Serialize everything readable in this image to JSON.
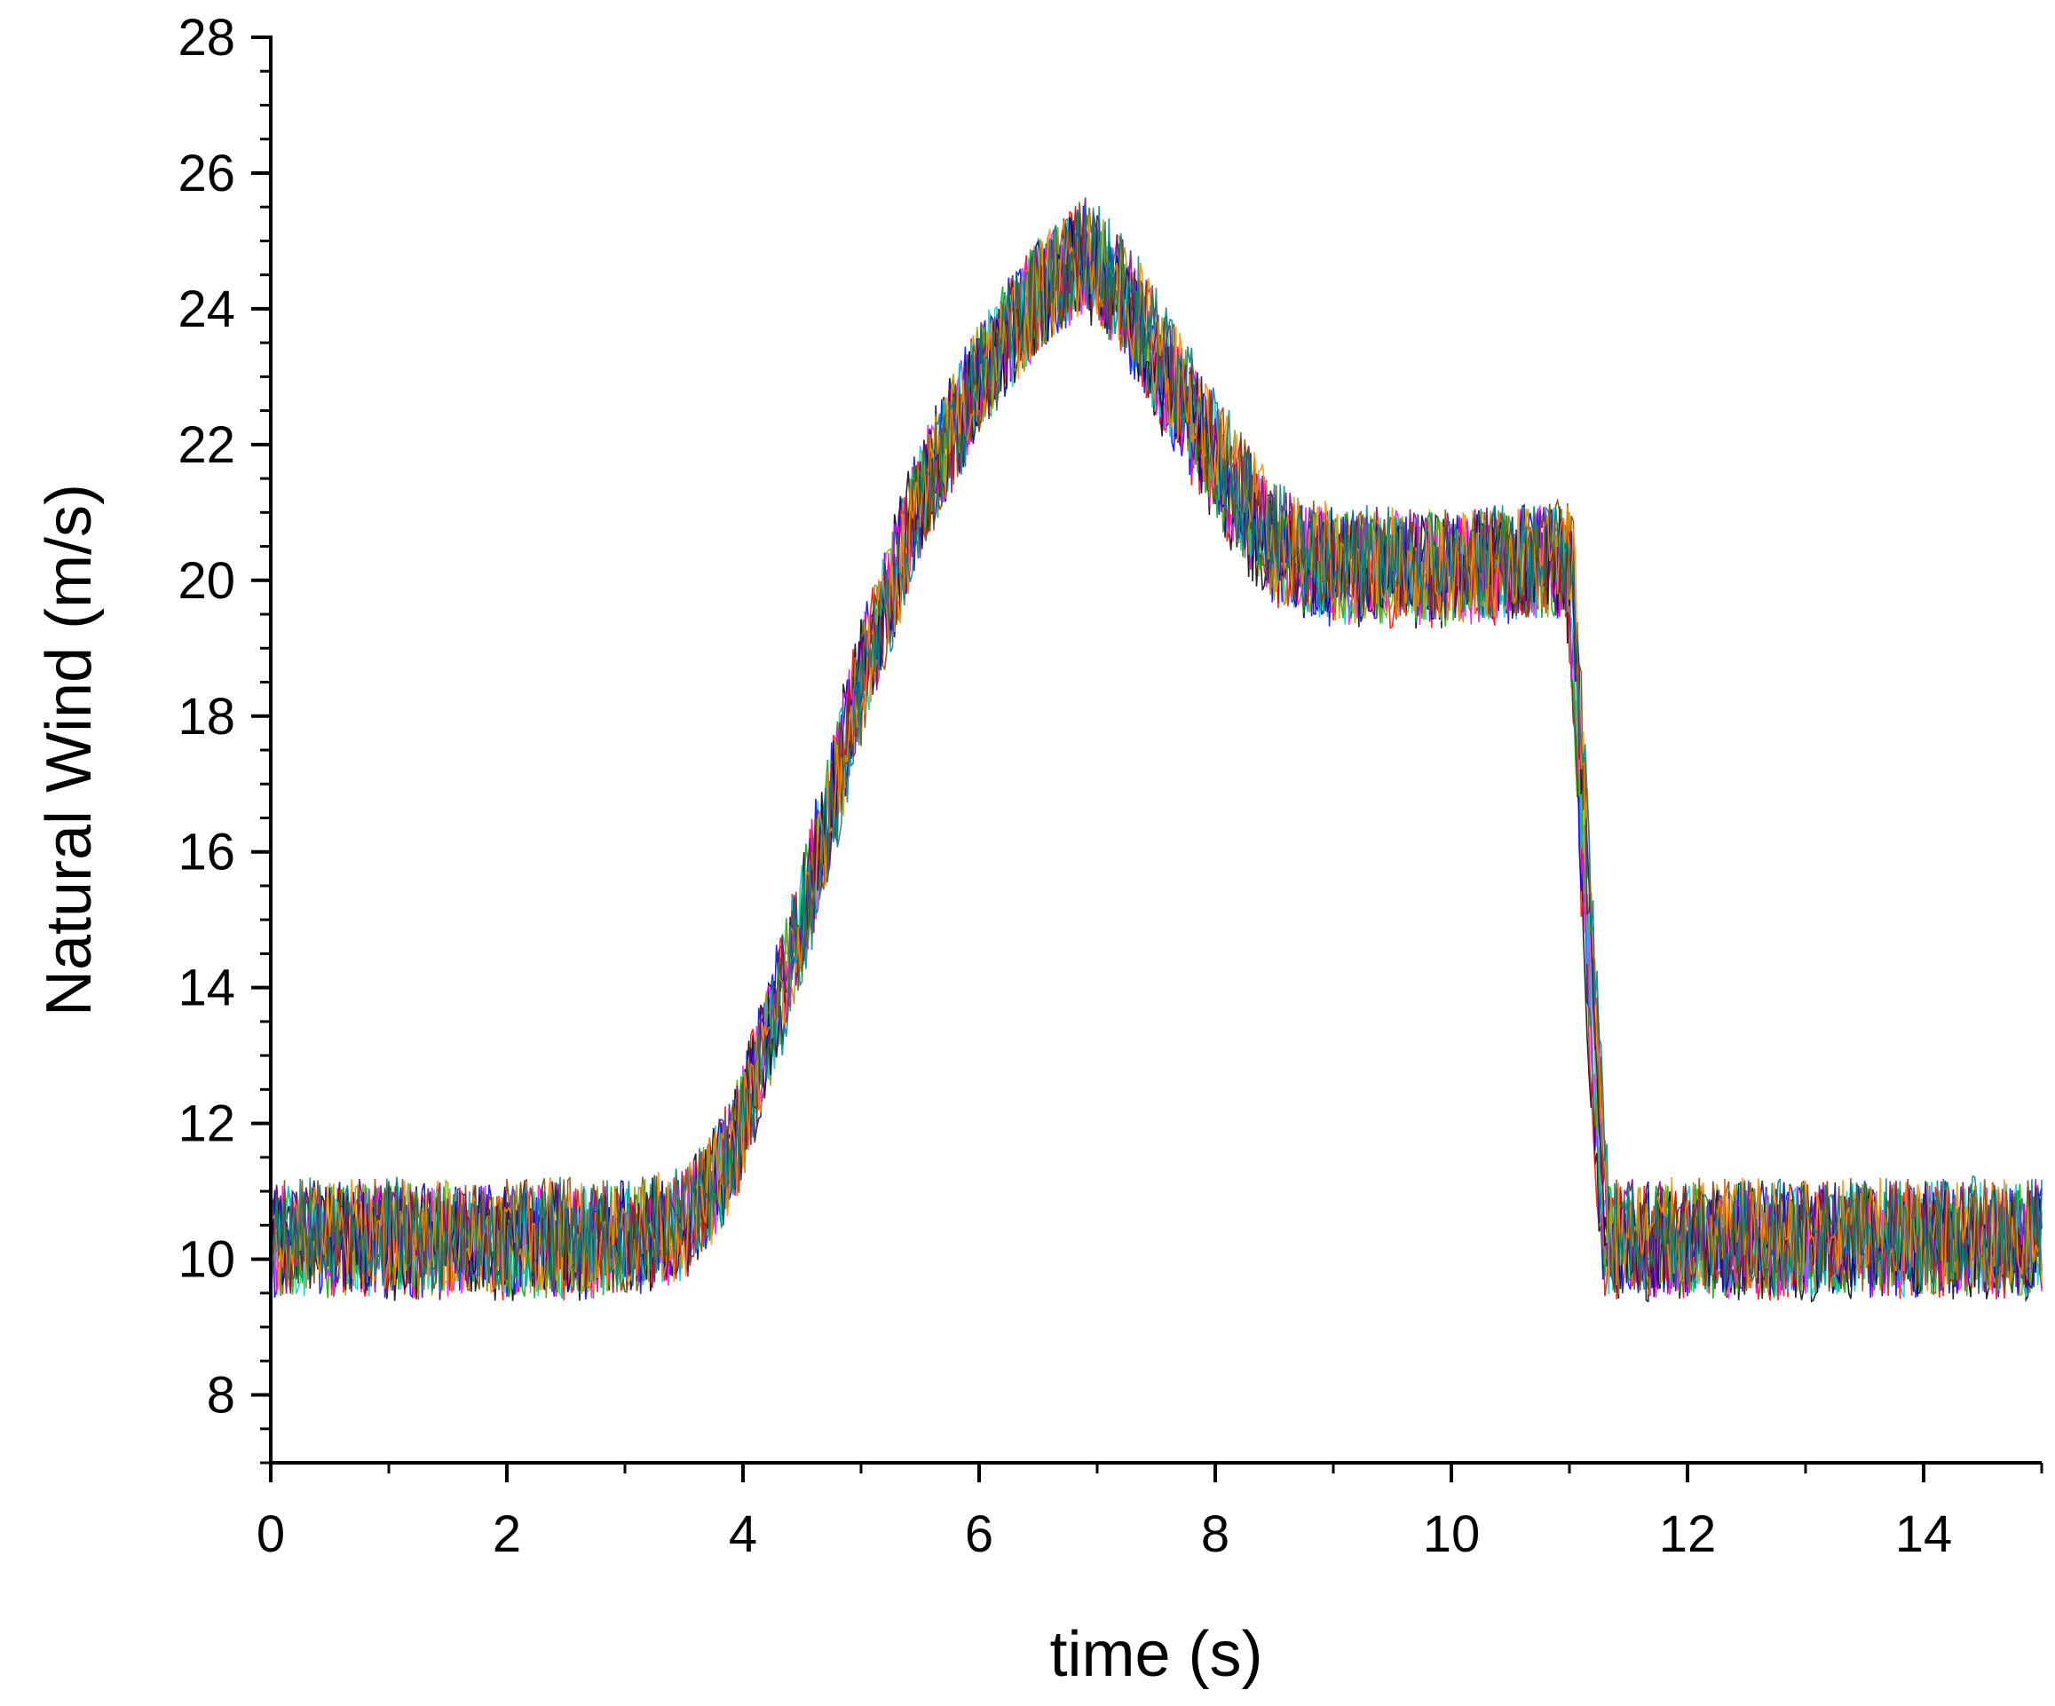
{
  "chart_data": {
    "type": "line",
    "title": "",
    "xlabel": "time (s)",
    "ylabel": "Natural Wind (m/s)",
    "xlim": [
      0,
      15
    ],
    "ylim": [
      7,
      28
    ],
    "x_ticks": [
      0,
      2,
      4,
      6,
      8,
      10,
      12,
      14
    ],
    "x_tick_labels": [
      "0",
      "2",
      "4",
      "6",
      "8",
      "10",
      "12",
      "14"
    ],
    "y_ticks": [
      8,
      10,
      12,
      14,
      16,
      18,
      20,
      22,
      24,
      26,
      28
    ],
    "y_tick_labels": [
      "8",
      "10",
      "12",
      "14",
      "16",
      "18",
      "20",
      "22",
      "24",
      "26",
      "28"
    ],
    "grid": false,
    "legend": "none",
    "ensemble": {
      "description_of_mean": "mean wind speed profile shared by all overlaid realizations",
      "mean_profile": {
        "x": [
          0,
          3.0,
          3.5,
          3.8,
          4.0,
          4.5,
          5.0,
          5.5,
          6.0,
          6.5,
          6.9,
          7.2,
          7.6,
          8.0,
          8.5,
          9.0,
          10.0,
          11.0,
          11.3,
          12.0,
          13.0,
          14.0,
          15.0
        ],
        "y": [
          10.3,
          10.3,
          10.5,
          11.2,
          12.0,
          15.0,
          18.5,
          21.2,
          23.0,
          24.2,
          24.8,
          24.2,
          23.0,
          21.8,
          20.5,
          20.2,
          20.2,
          20.3,
          10.3,
          10.3,
          10.3,
          10.3,
          10.3
        ]
      },
      "noise_band": 1.0,
      "series_count": 12,
      "series_colors": [
        "#000000",
        "#ff0000",
        "#0000ff",
        "#00aa00",
        "#ff00ff",
        "#00cccc",
        "#999900",
        "#000080",
        "#800080",
        "#804000",
        "#ff8800",
        "#008080"
      ]
    }
  }
}
